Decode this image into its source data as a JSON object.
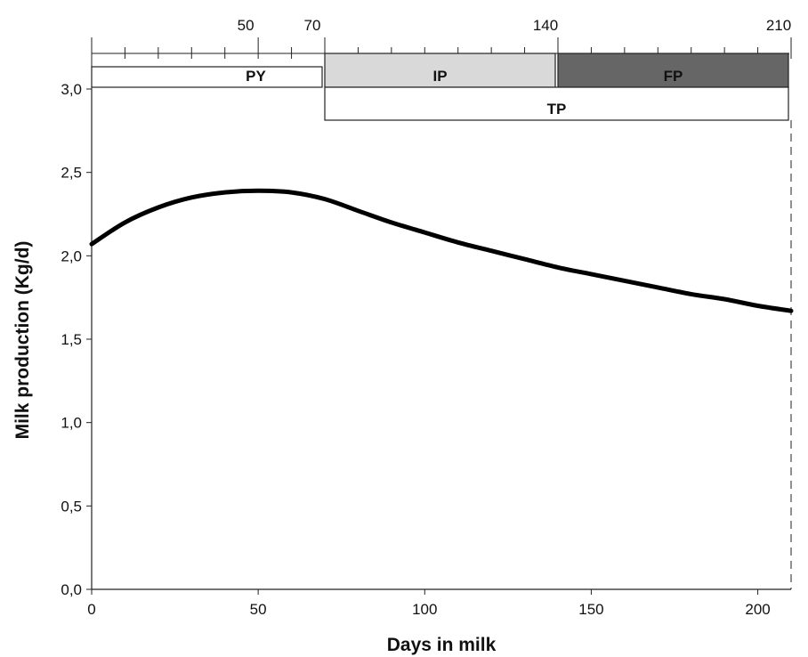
{
  "chart_data": {
    "type": "line",
    "xlabel": "Days in milk",
    "ylabel": "Milk production (Kg/d)",
    "xlim": [
      0,
      210
    ],
    "ylim": [
      0,
      3.0
    ],
    "x_ticks": [
      {
        "value": 0,
        "label": "0"
      },
      {
        "value": 50,
        "label": "50"
      },
      {
        "value": 100,
        "label": "100"
      },
      {
        "value": 150,
        "label": "150"
      },
      {
        "value": 200,
        "label": "200"
      }
    ],
    "y_ticks": [
      {
        "value": 0.0,
        "label": "0,0"
      },
      {
        "value": 0.5,
        "label": "0,5"
      },
      {
        "value": 1.0,
        "label": "1,0"
      },
      {
        "value": 1.5,
        "label": "1,5"
      },
      {
        "value": 2.0,
        "label": "2,0"
      },
      {
        "value": 2.5,
        "label": "2,5"
      },
      {
        "value": 3.0,
        "label": "3,0"
      }
    ],
    "grid": false,
    "series": [
      {
        "x": [
          0,
          10,
          20,
          30,
          40,
          50,
          60,
          70,
          80,
          90,
          100,
          110,
          120,
          130,
          140,
          150,
          160,
          170,
          180,
          190,
          200,
          210
        ],
        "y": [
          2.07,
          2.2,
          2.29,
          2.35,
          2.38,
          2.39,
          2.38,
          2.34,
          2.27,
          2.2,
          2.14,
          2.08,
          2.03,
          1.98,
          1.93,
          1.89,
          1.85,
          1.81,
          1.77,
          1.74,
          1.7,
          1.67
        ]
      }
    ],
    "top_axis": {
      "labels": [
        {
          "value": 50,
          "label": "50"
        },
        {
          "value": 70,
          "label": "70"
        },
        {
          "value": 140,
          "label": "140"
        },
        {
          "value": 210,
          "label": "210"
        }
      ],
      "minor_tick_step": 10
    },
    "period_bars": [
      {
        "label": "PY",
        "start": 0,
        "end": 70,
        "row": 1,
        "fill": "#ffffff"
      },
      {
        "label": "IP",
        "start": 70,
        "end": 140,
        "row": 0,
        "fill": "#d9d9d9"
      },
      {
        "label": "FP",
        "start": 140,
        "end": 210,
        "row": 0,
        "fill": "#666666"
      },
      {
        "label": "TP",
        "start": 70,
        "end": 210,
        "row": 2,
        "fill": "#ffffff"
      }
    ],
    "end_marker": {
      "x": 210,
      "style": "dashed"
    }
  }
}
